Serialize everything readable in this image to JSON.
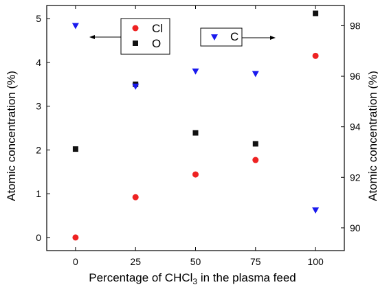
{
  "chart_data": {
    "type": "scatter",
    "x": [
      0,
      25,
      50,
      75,
      100
    ],
    "xlabel_parts": {
      "before": "Percentage of CHCl",
      "sub": "3",
      "after": " in the plasma feed"
    },
    "xticks": [
      "0",
      "25",
      "50",
      "75",
      "100"
    ],
    "xlim": [
      -12,
      112
    ],
    "y_left": {
      "label": "Atomic concentration (%)",
      "ticks": [
        "0",
        "1",
        "2",
        "3",
        "4",
        "5"
      ],
      "ylim": [
        -0.3,
        5.3
      ]
    },
    "y_right": {
      "label": "Atomic concentration (%)",
      "ticks": [
        "90",
        "92",
        "94",
        "96",
        "98"
      ],
      "ylim": [
        89.1,
        98.8
      ]
    },
    "series": [
      {
        "name": "Cl",
        "axis": "left",
        "marker": "circle",
        "color": "#ee2222",
        "values": [
          0.0,
          0.92,
          1.44,
          1.77,
          4.15
        ]
      },
      {
        "name": "O",
        "axis": "left",
        "marker": "square",
        "color": "#111111",
        "values": [
          2.02,
          3.5,
          2.39,
          2.14,
          5.12
        ]
      },
      {
        "name": "C",
        "axis": "right",
        "marker": "triangle-down",
        "color": "#1a1aee",
        "values": [
          98.0,
          95.6,
          96.2,
          96.1,
          90.7
        ]
      }
    ],
    "grid": false,
    "legend_left_arrow": "left",
    "legend_right_arrow": "right"
  }
}
